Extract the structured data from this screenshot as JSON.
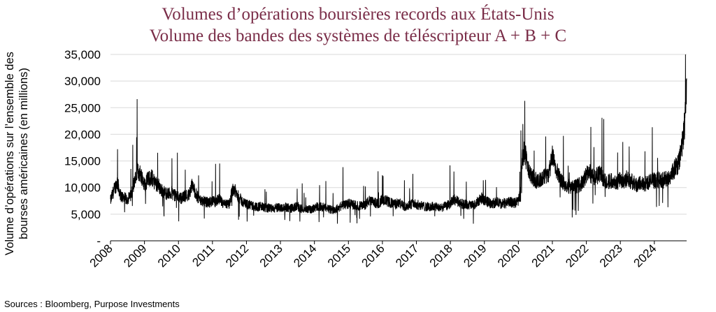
{
  "chart_data": {
    "type": "line",
    "title": "Volumes d’opérations boursières records aux États-Unis",
    "subtitle": "Volume des bandes des systèmes de téléscripteur A + B + C",
    "ylabel": "Volume d’opérations sur l’ensemble des bourses américaines (en millions)",
    "xlabel": "",
    "ylim": [
      0,
      35000
    ],
    "yticks": [
      0,
      5000,
      10000,
      15000,
      20000,
      25000,
      30000,
      35000
    ],
    "ytick_labels": [
      "-",
      "5,000",
      "10,000",
      "15,000",
      "20,000",
      "25,000",
      "30,000",
      "35,000"
    ],
    "xlim": [
      2008.0,
      2024.95
    ],
    "xtick_labels": [
      "2008",
      "2009",
      "2010",
      "2011",
      "2012",
      "2013",
      "2014",
      "2015",
      "2016",
      "2017",
      "2018",
      "2019",
      "2020",
      "2021",
      "2022",
      "2023",
      "2024"
    ],
    "grid": "horizontal",
    "line_color": "#000000",
    "series": [
      {
        "points": [
          [
            2008.0,
            7500
          ],
          [
            2008.1,
            9500
          ],
          [
            2008.2,
            11000
          ],
          [
            2008.3,
            8500
          ],
          [
            2008.4,
            8000
          ],
          [
            2008.5,
            7800
          ],
          [
            2008.6,
            8500
          ],
          [
            2008.7,
            11000
          ],
          [
            2008.8,
            13000
          ],
          [
            2008.9,
            12500
          ],
          [
            2009.0,
            10500
          ],
          [
            2009.1,
            11500
          ],
          [
            2009.2,
            12000
          ],
          [
            2009.3,
            11000
          ],
          [
            2009.4,
            10500
          ],
          [
            2009.5,
            9500
          ],
          [
            2009.6,
            9000
          ],
          [
            2009.7,
            8800
          ],
          [
            2009.8,
            9000
          ],
          [
            2009.9,
            8500
          ],
          [
            2010.0,
            8200
          ],
          [
            2010.1,
            8000
          ],
          [
            2010.2,
            8500
          ],
          [
            2010.3,
            8600
          ],
          [
            2010.4,
            10500
          ],
          [
            2010.5,
            9000
          ],
          [
            2010.6,
            7800
          ],
          [
            2010.7,
            7500
          ],
          [
            2010.8,
            7300
          ],
          [
            2010.9,
            7200
          ],
          [
            2011.0,
            7400
          ],
          [
            2011.1,
            7300
          ],
          [
            2011.2,
            7800
          ],
          [
            2011.3,
            7000
          ],
          [
            2011.4,
            6800
          ],
          [
            2011.5,
            7000
          ],
          [
            2011.6,
            10000
          ],
          [
            2011.7,
            9000
          ],
          [
            2011.8,
            8000
          ],
          [
            2011.9,
            7200
          ],
          [
            2012.0,
            6900
          ],
          [
            2012.1,
            6700
          ],
          [
            2012.2,
            6500
          ],
          [
            2012.3,
            6400
          ],
          [
            2012.4,
            6500
          ],
          [
            2012.5,
            6300
          ],
          [
            2012.6,
            6100
          ],
          [
            2012.7,
            6200
          ],
          [
            2012.8,
            6000
          ],
          [
            2012.9,
            6200
          ],
          [
            2013.0,
            6300
          ],
          [
            2013.1,
            6200
          ],
          [
            2013.2,
            6300
          ],
          [
            2013.3,
            6100
          ],
          [
            2013.4,
            6200
          ],
          [
            2013.5,
            6500
          ],
          [
            2013.6,
            6000
          ],
          [
            2013.7,
            5900
          ],
          [
            2013.8,
            6000
          ],
          [
            2013.9,
            5800
          ],
          [
            2014.0,
            6300
          ],
          [
            2014.1,
            6500
          ],
          [
            2014.2,
            6400
          ],
          [
            2014.3,
            6200
          ],
          [
            2014.4,
            6000
          ],
          [
            2014.5,
            5800
          ],
          [
            2014.6,
            5900
          ],
          [
            2014.7,
            6100
          ],
          [
            2014.8,
            6600
          ],
          [
            2014.9,
            6800
          ],
          [
            2015.0,
            7000
          ],
          [
            2015.1,
            6800
          ],
          [
            2015.2,
            6700
          ],
          [
            2015.3,
            6500
          ],
          [
            2015.4,
            6600
          ],
          [
            2015.5,
            6800
          ],
          [
            2015.6,
            7500
          ],
          [
            2015.7,
            7300
          ],
          [
            2015.8,
            7100
          ],
          [
            2015.9,
            7000
          ],
          [
            2016.0,
            7800
          ],
          [
            2016.1,
            7600
          ],
          [
            2016.2,
            7200
          ],
          [
            2016.3,
            7000
          ],
          [
            2016.4,
            6900
          ],
          [
            2016.5,
            7100
          ],
          [
            2016.6,
            6600
          ],
          [
            2016.7,
            6400
          ],
          [
            2016.8,
            6800
          ],
          [
            2016.9,
            7000
          ],
          [
            2017.0,
            6800
          ],
          [
            2017.1,
            6700
          ],
          [
            2017.2,
            6500
          ],
          [
            2017.3,
            6400
          ],
          [
            2017.4,
            6300
          ],
          [
            2017.5,
            6500
          ],
          [
            2017.6,
            6300
          ],
          [
            2017.7,
            6200
          ],
          [
            2017.8,
            6400
          ],
          [
            2017.9,
            6600
          ],
          [
            2018.0,
            7000
          ],
          [
            2018.1,
            7800
          ],
          [
            2018.2,
            7400
          ],
          [
            2018.3,
            7000
          ],
          [
            2018.4,
            6900
          ],
          [
            2018.5,
            6800
          ],
          [
            2018.6,
            6700
          ],
          [
            2018.7,
            6600
          ],
          [
            2018.8,
            7300
          ],
          [
            2018.9,
            8000
          ],
          [
            2019.0,
            7600
          ],
          [
            2019.1,
            7300
          ],
          [
            2019.2,
            7000
          ],
          [
            2019.3,
            7100
          ],
          [
            2019.4,
            7200
          ],
          [
            2019.5,
            6900
          ],
          [
            2019.6,
            7000
          ],
          [
            2019.7,
            7300
          ],
          [
            2019.8,
            7200
          ],
          [
            2019.9,
            7100
          ],
          [
            2020.0,
            7600
          ],
          [
            2020.05,
            8500
          ],
          [
            2020.12,
            15500
          ],
          [
            2020.18,
            17000
          ],
          [
            2020.25,
            14500
          ],
          [
            2020.3,
            13000
          ],
          [
            2020.4,
            12000
          ],
          [
            2020.5,
            11500
          ],
          [
            2020.6,
            11000
          ],
          [
            2020.7,
            11800
          ],
          [
            2020.8,
            12200
          ],
          [
            2020.9,
            12500
          ],
          [
            2021.0,
            16000
          ],
          [
            2021.05,
            14500
          ],
          [
            2021.1,
            13500
          ],
          [
            2021.2,
            12000
          ],
          [
            2021.3,
            11000
          ],
          [
            2021.4,
            10500
          ],
          [
            2021.5,
            10200
          ],
          [
            2021.6,
            10000
          ],
          [
            2021.7,
            10300
          ],
          [
            2021.8,
            10500
          ],
          [
            2021.9,
            11000
          ],
          [
            2022.0,
            12500
          ],
          [
            2022.1,
            12800
          ],
          [
            2022.2,
            12000
          ],
          [
            2022.3,
            12200
          ],
          [
            2022.4,
            12500
          ],
          [
            2022.5,
            11800
          ],
          [
            2022.6,
            11000
          ],
          [
            2022.7,
            11200
          ],
          [
            2022.8,
            11500
          ],
          [
            2022.9,
            11000
          ],
          [
            2023.0,
            11500
          ],
          [
            2023.1,
            11300
          ],
          [
            2023.2,
            11800
          ],
          [
            2023.3,
            11200
          ],
          [
            2023.4,
            10800
          ],
          [
            2023.5,
            10500
          ],
          [
            2023.6,
            10800
          ],
          [
            2023.7,
            10600
          ],
          [
            2023.8,
            11000
          ],
          [
            2023.9,
            11200
          ],
          [
            2024.0,
            11300
          ],
          [
            2024.1,
            11500
          ],
          [
            2024.2,
            11200
          ],
          [
            2024.3,
            11500
          ],
          [
            2024.4,
            11700
          ],
          [
            2024.5,
            12500
          ],
          [
            2024.6,
            13500
          ],
          [
            2024.7,
            14500
          ],
          [
            2024.75,
            16000
          ],
          [
            2024.8,
            17500
          ],
          [
            2024.85,
            19000
          ],
          [
            2024.9,
            23000
          ],
          [
            2024.95,
            30500
          ]
        ]
      }
    ]
  },
  "footer": {
    "source": "Sources : Bloomberg, Purpose Investments"
  }
}
